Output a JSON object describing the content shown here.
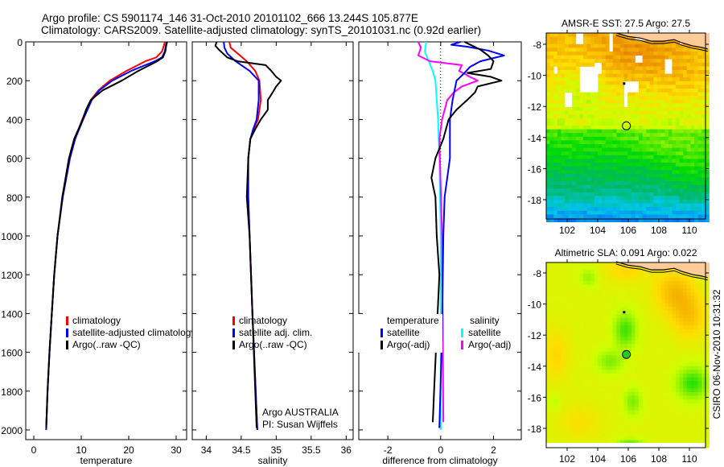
{
  "header": {
    "line1": "Argo profile: CS 5901174_146 31-Oct-2010 20101102_666 13.244S 105.877E",
    "line2": "Climatology: CARS2009. Satellite-adjusted climatology: synTS_20101031.nc (0.92d earlier)"
  },
  "footer": {
    "stamp": "CSIRO 06-Nov-2010 10:31:32"
  },
  "chart_data": [
    {
      "type": "line",
      "name": "temperature",
      "xlabel": "temperature",
      "ylabel": "",
      "xlim": [
        -1.7,
        32.2
      ],
      "ylim": [
        2050,
        0
      ],
      "xticks": [
        "0",
        "10",
        "20",
        "30"
      ],
      "xtick_values": [
        0,
        10,
        20,
        30
      ],
      "yticks": [
        "0",
        "200",
        "400",
        "600",
        "800",
        "1000",
        "1200",
        "1400",
        "1600",
        "1800",
        "2000"
      ],
      "ytick_values": [
        0,
        200,
        400,
        600,
        800,
        1000,
        1200,
        1400,
        1600,
        1800,
        2000
      ],
      "legend": [
        "climatology",
        "satellite-adjusted climatology",
        "Argo(..raw -QC)"
      ],
      "series": [
        {
          "name": "climatology",
          "color": "#ff0000",
          "depth": [
            0,
            20,
            50,
            80,
            100,
            150,
            200,
            250,
            300,
            400,
            500,
            600,
            800,
            1000,
            1200,
            1400,
            1600,
            1800,
            2000
          ],
          "values": [
            27.6,
            27.4,
            27.0,
            25.8,
            23.5,
            19.5,
            16.0,
            13.6,
            12.0,
            10.2,
            8.7,
            7.6,
            6.1,
            5.0,
            4.3,
            3.8,
            3.3,
            2.9,
            2.6
          ]
        },
        {
          "name": "satellite-adjusted climatology",
          "color": "#0000ff",
          "depth": [
            0,
            20,
            50,
            80,
            100,
            150,
            200,
            250,
            300,
            400,
            500,
            600,
            800,
            1000,
            1200,
            1400,
            1600,
            1800,
            2000
          ],
          "values": [
            28.0,
            27.8,
            27.6,
            27.0,
            25.5,
            20.5,
            16.5,
            13.8,
            12.2,
            10.4,
            8.7,
            7.6,
            6.1,
            5.0,
            4.3,
            3.8,
            3.3,
            2.9,
            2.6
          ]
        },
        {
          "name": "Argo(..raw -QC)",
          "color": "#000000",
          "depth": [
            0,
            20,
            50,
            80,
            100,
            150,
            200,
            250,
            300,
            350,
            400,
            500,
            600,
            800,
            1000,
            1200,
            1400,
            1600,
            1800,
            1990
          ],
          "values": [
            28.1,
            27.9,
            27.7,
            27.2,
            26.0,
            22.0,
            18.5,
            14.5,
            12.0,
            11.0,
            10.3,
            8.5,
            7.4,
            6.0,
            5.0,
            4.3,
            3.8,
            3.3,
            2.9,
            2.6
          ]
        }
      ]
    },
    {
      "type": "line",
      "name": "salinity",
      "xlabel": "salinity",
      "xlim": [
        33.8,
        36.1
      ],
      "ylim": [
        2050,
        0
      ],
      "xticks": [
        "34",
        "34.5",
        "35",
        "35.5",
        "36"
      ],
      "xtick_values": [
        34,
        34.5,
        35,
        35.5,
        36
      ],
      "legend": [
        "climatology",
        "satellite adj. clim.",
        "Argo(..raw -QC)"
      ],
      "annotations": [
        "Argo AUSTRALIA",
        "PI: Susan Wijffels"
      ],
      "series": [
        {
          "name": "climatology",
          "color": "#ff0000",
          "depth": [
            0,
            30,
            60,
            100,
            150,
            200,
            300,
            400,
            450,
            500,
            600,
            800,
            1000,
            1400,
            2000
          ],
          "values": [
            34.33,
            34.35,
            34.45,
            34.58,
            34.7,
            34.76,
            34.78,
            34.74,
            34.68,
            34.63,
            34.6,
            34.6,
            34.62,
            34.66,
            34.73
          ]
        },
        {
          "name": "satellite adj. clim.",
          "color": "#0000ff",
          "depth": [
            0,
            30,
            60,
            100,
            150,
            200,
            300,
            400,
            450,
            500,
            600,
            800,
            1000,
            1400,
            2000
          ],
          "values": [
            34.25,
            34.26,
            34.3,
            34.42,
            34.62,
            34.75,
            34.75,
            34.72,
            34.67,
            34.63,
            34.6,
            34.6,
            34.62,
            34.66,
            34.73
          ]
        },
        {
          "name": "Argo(..raw -QC)",
          "color": "#000000",
          "depth": [
            0,
            20,
            40,
            80,
            100,
            120,
            150,
            180,
            200,
            230,
            260,
            300,
            350,
            400,
            450,
            500,
            600,
            800,
            1000,
            1400,
            1990
          ],
          "values": [
            34.15,
            34.13,
            34.18,
            34.3,
            34.45,
            34.85,
            34.93,
            35.0,
            35.07,
            35.0,
            34.95,
            34.88,
            34.88,
            34.78,
            34.7,
            34.63,
            34.6,
            34.58,
            34.62,
            34.66,
            34.72
          ]
        }
      ]
    },
    {
      "type": "line",
      "name": "difference",
      "xlabel": "difference from climatology",
      "xlim": [
        -3.1,
        3.05
      ],
      "ylim": [
        2050,
        0
      ],
      "xticks": [
        "-2",
        "0",
        "2"
      ],
      "xtick_values": [
        -2,
        0,
        2
      ],
      "legend_temperature": {
        "title": "temperature",
        "items": [
          "satellite",
          "Argo(-adj)"
        ]
      },
      "legend_salinity": {
        "title": "salinity",
        "items": [
          "satellite",
          "Argo(-adj)"
        ]
      },
      "series": [
        {
          "name": "temperature satellite",
          "color": "#0000ff",
          "depth": [
            0,
            15,
            25,
            45,
            70,
            100,
            130,
            160,
            200,
            300,
            400,
            600,
            800,
            1000,
            1500,
            1990
          ],
          "values": [
            0.75,
            0.4,
            1.0,
            1.8,
            2.4,
            1.5,
            1.1,
            0.9,
            0.6,
            0.45,
            0.35,
            0.35,
            0.15,
            0.1,
            0.05,
            -0.05
          ]
        },
        {
          "name": "temperature Argo(-adj)",
          "color": "#000000",
          "depth": [
            0,
            20,
            40,
            70,
            100,
            140,
            160,
            180,
            200,
            230,
            260,
            300,
            350,
            400,
            500,
            600,
            700,
            800,
            1000,
            1200,
            1500,
            1800,
            1960
          ],
          "values": [
            0.9,
            1.2,
            1.5,
            1.8,
            2.0,
            1.9,
            1.0,
            1.9,
            2.3,
            1.4,
            1.3,
            1.0,
            0.6,
            0.3,
            0.1,
            -0.2,
            -0.35,
            -0.2,
            -0.15,
            -0.05,
            -0.15,
            -0.25,
            -0.3
          ]
        },
        {
          "name": "salinity satellite",
          "color": "#00ffff",
          "depth": [
            0,
            50,
            100,
            150,
            200,
            300,
            400,
            600,
            1000,
            1500,
            2000
          ],
          "values": [
            -0.55,
            -0.6,
            -0.45,
            -0.3,
            -0.2,
            -0.15,
            -0.1,
            -0.05,
            0.0,
            0.0,
            0.0
          ]
        },
        {
          "name": "salinity Argo(-adj)",
          "color": "#ff00ff",
          "depth": [
            0,
            30,
            70,
            100,
            120,
            150,
            180,
            200,
            230,
            260,
            300,
            400,
            500,
            1000,
            1500,
            1960
          ],
          "values": [
            -0.85,
            -0.75,
            -0.85,
            -0.4,
            0.8,
            0.7,
            1.1,
            1.4,
            0.8,
            0.5,
            0.25,
            0.05,
            -0.05,
            0.05,
            0.08,
            0.1
          ]
        }
      ]
    },
    {
      "type": "heatmap",
      "name": "sst-map",
      "title": "AMSR-E SST: 27.5 Argo: 27.5",
      "xticks": [
        "102",
        "104",
        "106",
        "108",
        "110"
      ],
      "xtick_values": [
        102,
        104,
        106,
        108,
        110
      ],
      "yticks": [
        "-8",
        "-10",
        "-12",
        "-14",
        "-16",
        "-18"
      ],
      "ytick_values": [
        -8,
        -10,
        -12,
        -14,
        -16,
        -18
      ],
      "xlim": [
        100.6,
        111.0
      ],
      "ylim": [
        -19.2,
        -7.27
      ],
      "argo_position": {
        "lon": 105.877,
        "lat": -13.244
      }
    },
    {
      "type": "heatmap",
      "name": "sla-map",
      "title": "Altimetric SLA: 0.091 Argo: 0.022",
      "xticks": [
        "102",
        "104",
        "106",
        "108",
        "110"
      ],
      "xtick_values": [
        102,
        104,
        106,
        108,
        110
      ],
      "yticks": [
        "-8",
        "-10",
        "-12",
        "-14",
        "-16",
        "-18"
      ],
      "ytick_values": [
        -8,
        -10,
        -12,
        -14,
        -16,
        -18
      ],
      "xlim": [
        100.6,
        111.0
      ],
      "ylim": [
        -19.2,
        -7.33
      ],
      "argo_position": {
        "lon": 105.877,
        "lat": -13.244
      }
    }
  ]
}
